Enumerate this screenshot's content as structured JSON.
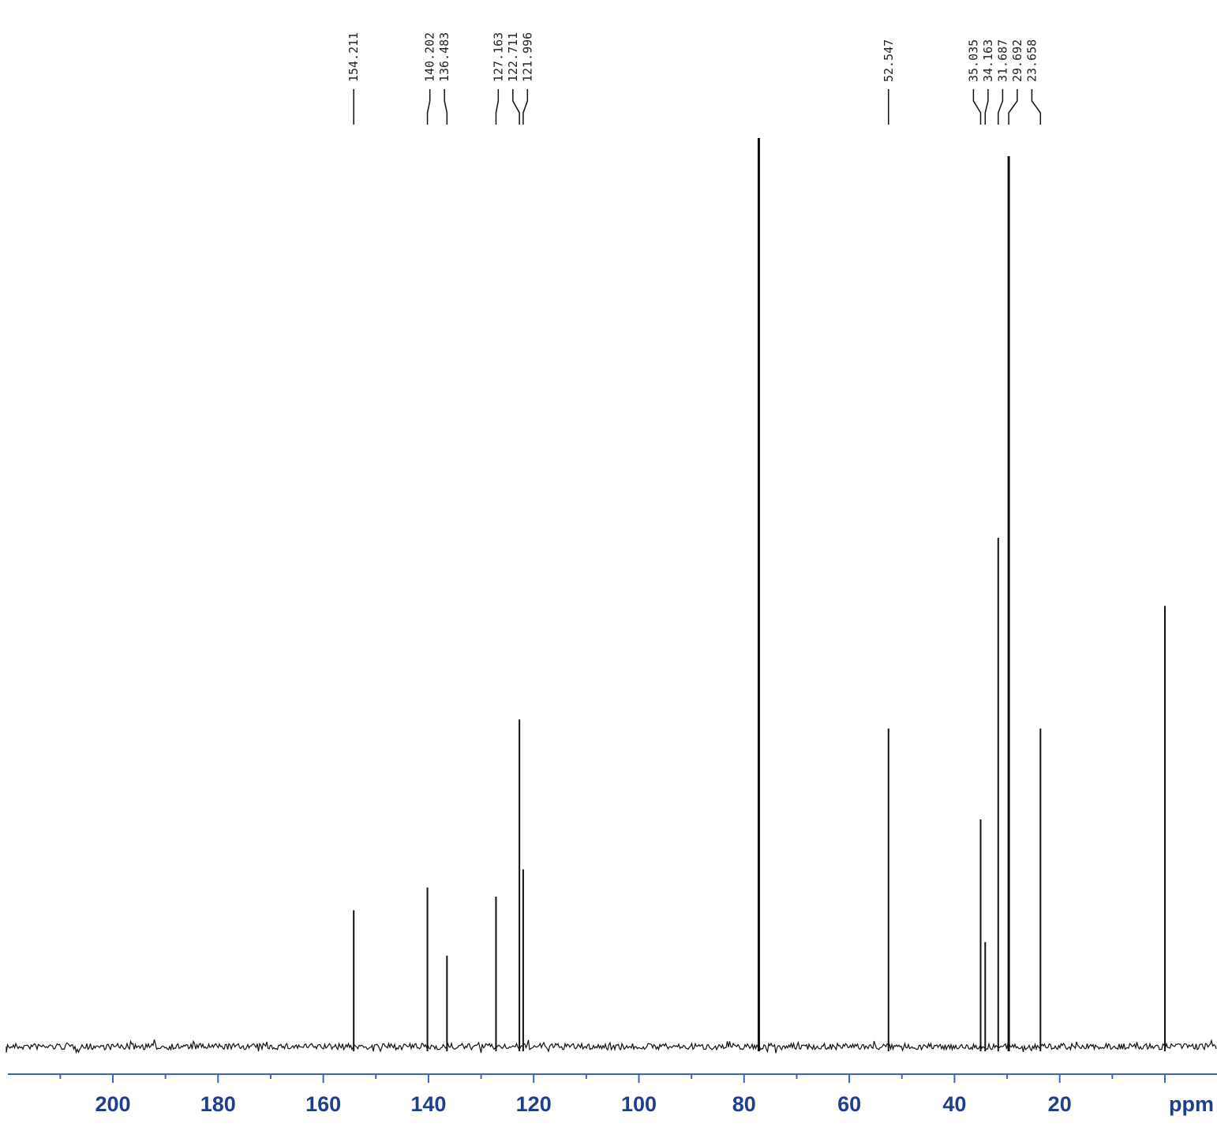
{
  "chart_data": {
    "type": "line",
    "xlabel": "ppm",
    "ylabel": "",
    "x_reversed": true,
    "xlim": [
      -5,
      225
    ],
    "xticks": [
      200,
      180,
      160,
      140,
      120,
      100,
      80,
      60,
      40,
      20,
      0
    ],
    "tick_labels": [
      "200",
      "180",
      "160",
      "140",
      "120",
      "100",
      "80",
      "60",
      "40",
      "20",
      "ppm"
    ],
    "grid": false,
    "peak_labels": [
      "154.211",
      "140.202",
      "136.483",
      "127.163",
      "122.711",
      "121.996",
      "52.547",
      "35.035",
      "34.163",
      "31.687",
      "29.692",
      "23.658"
    ],
    "peaks": [
      {
        "ppm": 154.211,
        "intensity": 0.15
      },
      {
        "ppm": 140.202,
        "intensity": 0.175
      },
      {
        "ppm": 136.483,
        "intensity": 0.1
      },
      {
        "ppm": 127.163,
        "intensity": 0.165
      },
      {
        "ppm": 122.711,
        "intensity": 0.36
      },
      {
        "ppm": 121.996,
        "intensity": 0.195
      },
      {
        "ppm": 77.2,
        "intensity": 1.0
      },
      {
        "ppm": 52.547,
        "intensity": 0.35
      },
      {
        "ppm": 35.035,
        "intensity": 0.25
      },
      {
        "ppm": 34.163,
        "intensity": 0.115
      },
      {
        "ppm": 31.687,
        "intensity": 0.56
      },
      {
        "ppm": 29.692,
        "intensity": 0.98
      },
      {
        "ppm": 23.658,
        "intensity": 0.35
      },
      {
        "ppm": 0.0,
        "intensity": 0.485
      }
    ],
    "colors": {
      "trace": "#111111",
      "axis": "#3a66b8",
      "tick_label": "#1f3f8c",
      "peak_label": "#222222"
    }
  }
}
